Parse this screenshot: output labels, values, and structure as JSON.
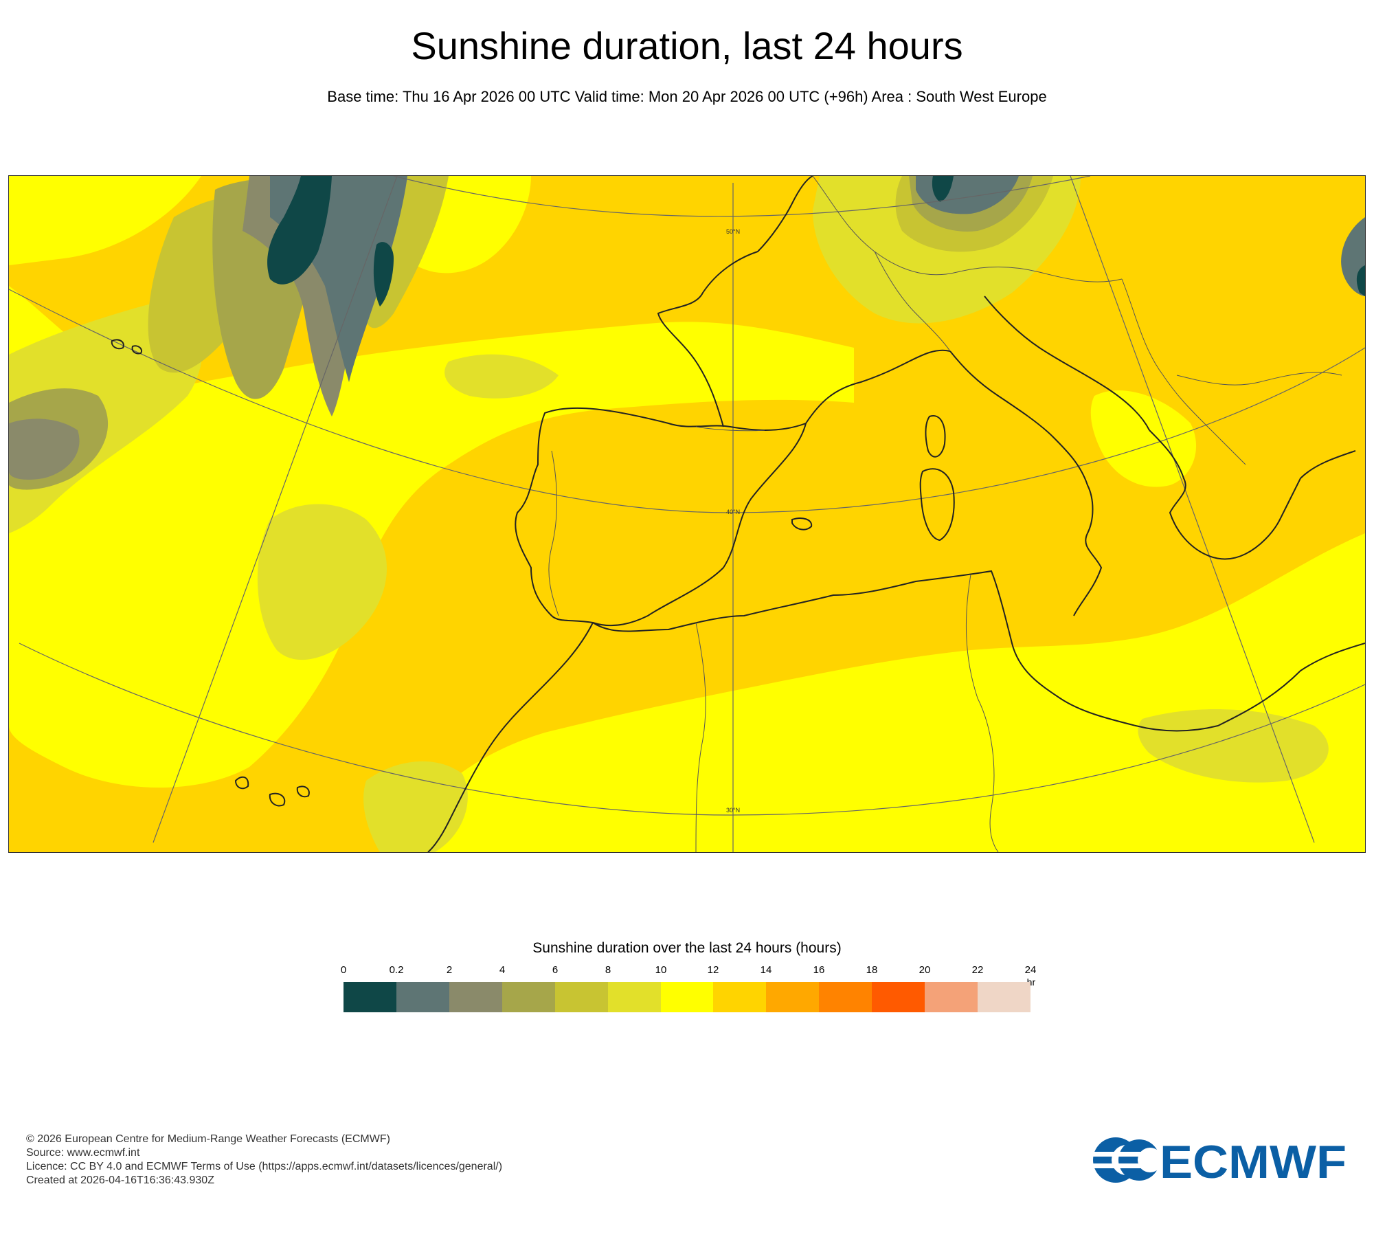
{
  "header": {
    "title": "Sunshine duration, last 24 hours",
    "subtitle": "Base time: Thu 16 Apr 2026 00 UTC Valid time: Mon 20 Apr 2026 00 UTC (+96h) Area : South West Europe"
  },
  "map": {
    "area": "South West Europe",
    "latitude_labels": [
      "50°N",
      "40°N",
      "30°N"
    ],
    "dominant_colors": {
      "ten_to_twelve": "#ffff00",
      "twelve_to_fourteen": "#ffd400",
      "cloudy": "#8a8a6a",
      "overcast": "#0f4747"
    }
  },
  "legend": {
    "title": "Sunshine duration over the last 24 hours (hours)",
    "unit": "-hr",
    "ticks": [
      "0",
      "0.2",
      "2",
      "4",
      "6",
      "8",
      "10",
      "12",
      "14",
      "16",
      "18",
      "20",
      "22",
      "24"
    ],
    "colors": [
      "#0f4747",
      "#5e7574",
      "#8a8a6a",
      "#a6a64a",
      "#c8c432",
      "#e2e02a",
      "#ffff00",
      "#ffd400",
      "#ffa800",
      "#ff8300",
      "#ff5a00",
      "#f4a278",
      "#efd6c6"
    ]
  },
  "footer": {
    "copyright": "© 2026 European Centre for Medium-Range Weather Forecasts (ECMWF)",
    "source": "Source: www.ecmwf.int",
    "licence": "Licence: CC BY 4.0 and ECMWF Terms of Use (https://apps.ecmwf.int/datasets/licences/general/)",
    "created": "Created at 2026-04-16T16:36:43.930Z"
  },
  "logo": {
    "text": "ECMWF",
    "color": "#0b5fa5"
  }
}
